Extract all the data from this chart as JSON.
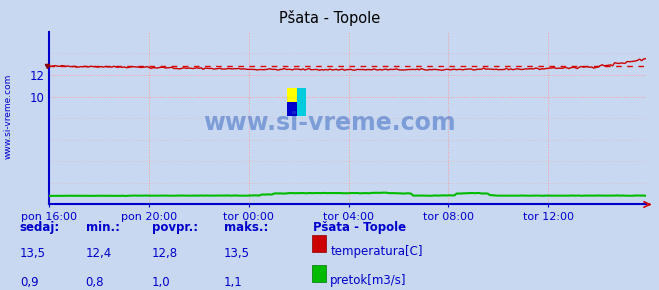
{
  "title": "Pšata - Topole",
  "bg_color": "#c8d8f0",
  "plot_bg_color": "#c8d8f0",
  "grid_color_h": "#ff9999",
  "grid_color_v": "#ff9999",
  "axis_color": "#0000cc",
  "watermark_text": "www.si-vreme.com",
  "watermark_color": "#2255bb",
  "side_label": "www.si-vreme.com",
  "xlabel_ticks": [
    "pon 16:00",
    "pon 20:00",
    "tor 00:00",
    "tor 04:00",
    "tor 08:00",
    "tor 12:00"
  ],
  "xlabel_tick_positions": [
    0,
    48,
    96,
    144,
    192,
    240
  ],
  "total_points": 288,
  "y_min": 0,
  "y_max": 16,
  "temp_avg": 12.8,
  "temp_color": "#cc0000",
  "temp_avg_color": "#dd0000",
  "flow_color": "#00bb00",
  "title_color": "#000000",
  "legend_title": "Pšata - Topole",
  "legend_label_temp": "temperatura[C]",
  "legend_label_flow": "pretok[m3/s]",
  "legend_color": "#0000cc",
  "table_labels": [
    "sedaj:",
    "min.:",
    "povpr.:",
    "maks.:"
  ],
  "table_temp": [
    "13,5",
    "12,4",
    "12,8",
    "13,5"
  ],
  "table_flow": [
    "0,9",
    "0,8",
    "1,0",
    "1,1"
  ],
  "yticks": [
    10,
    12
  ],
  "ytick_labels": [
    "10",
    "12"
  ]
}
